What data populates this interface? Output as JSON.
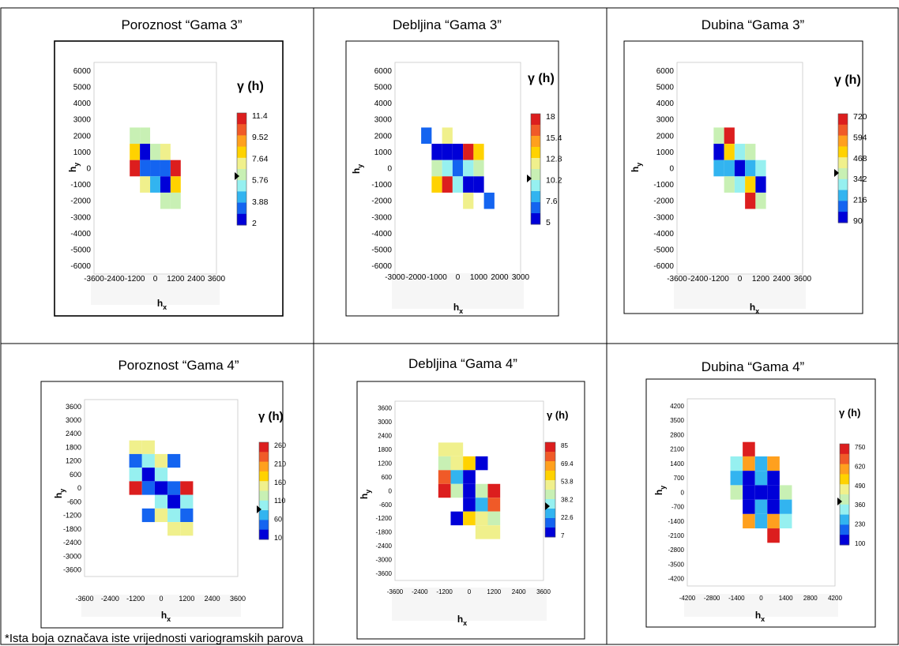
{
  "footnote": "*Ista boja označava iste vrijednosti variogramskih parova",
  "colors": [
    "#0000d8",
    "#1464f0",
    "#32b4f0",
    "#96f0f0",
    "#c8f0b4",
    "#f0f08c",
    "#ffd200",
    "#ffa01e",
    "#f05a28",
    "#dc1e1e"
  ],
  "chart_data": [
    {
      "type": "heatmap",
      "title": "Poroznost “Gama 3”",
      "xlabel": "hx",
      "ylabel": "hy",
      "legend_title": "γ (h)",
      "x_ticks": [
        "-3600",
        "-2400",
        "-1200",
        "0",
        "1200",
        "2400",
        "3600"
      ],
      "y_ticks": [
        "6000",
        "5000",
        "4000",
        "3000",
        "2000",
        "1000",
        "0",
        "-1000",
        "-2000",
        "-3000",
        "-4000",
        "-5000",
        "-6000"
      ],
      "xlim": [
        -3600,
        3600
      ],
      "ylim": [
        -6500,
        6500
      ],
      "cell": [
        600,
        1000
      ],
      "colorbar_labels": [
        "11.4",
        "9.52",
        "7.64",
        "5.76",
        "3.88",
        "2"
      ],
      "colorbar_range": [
        2,
        11.4
      ],
      "cells": [
        {
          "x": -1200,
          "y": 2000,
          "value": 6.5
        },
        {
          "x": -600,
          "y": 2000,
          "value": 5.8
        },
        {
          "x": -1200,
          "y": 1000,
          "value": 8.3
        },
        {
          "x": -600,
          "y": 1000,
          "value": 2.0
        },
        {
          "x": 0,
          "y": 1000,
          "value": 5.8
        },
        {
          "x": 600,
          "y": 1000,
          "value": 7.0
        },
        {
          "x": -1200,
          "y": 0,
          "value": 11.4
        },
        {
          "x": -600,
          "y": 0,
          "value": 3.3
        },
        {
          "x": 0,
          "y": 0,
          "value": 3.3
        },
        {
          "x": 600,
          "y": 0,
          "value": 3.3
        },
        {
          "x": 1200,
          "y": 0,
          "value": 11.4
        },
        {
          "x": -600,
          "y": -1000,
          "value": 7.0
        },
        {
          "x": 0,
          "y": -1000,
          "value": 4.1
        },
        {
          "x": 600,
          "y": -1000,
          "value": 2.0
        },
        {
          "x": 1200,
          "y": -1000,
          "value": 8.3
        },
        {
          "x": 600,
          "y": -2000,
          "value": 5.8
        },
        {
          "x": 1200,
          "y": -2000,
          "value": 6.5
        }
      ]
    },
    {
      "type": "heatmap",
      "title": "Debljina “Gama 3”",
      "xlabel": "hx",
      "ylabel": "hy",
      "legend_title": "γ (h)",
      "x_ticks": [
        "-3000",
        "-2000",
        "-1000",
        "0",
        "1000",
        "2000",
        "3000"
      ],
      "y_ticks": [
        "6000",
        "5000",
        "4000",
        "3000",
        "2000",
        "1000",
        "0",
        "-1000",
        "-2000",
        "-3000",
        "-4000",
        "-5000",
        "-6000"
      ],
      "xlim": [
        -3000,
        3000
      ],
      "ylim": [
        -6500,
        6500
      ],
      "cell": [
        500,
        1000
      ],
      "colorbar_labels": [
        "18",
        "15.4",
        "12.8",
        "10.2",
        "7.6",
        "5"
      ],
      "colorbar_range": [
        5,
        18
      ],
      "cells": [
        {
          "x": -1500,
          "y": 2000,
          "value": 6.0
        },
        {
          "x": -500,
          "y": 2000,
          "value": 12.0
        },
        {
          "x": -1000,
          "y": 1000,
          "value": 5.0
        },
        {
          "x": -500,
          "y": 1000,
          "value": 5.0
        },
        {
          "x": 0,
          "y": 1000,
          "value": 5.0
        },
        {
          "x": 500,
          "y": 1000,
          "value": 18.0
        },
        {
          "x": 1000,
          "y": 1000,
          "value": 14.0
        },
        {
          "x": -1000,
          "y": 0,
          "value": 11.0
        },
        {
          "x": -500,
          "y": 0,
          "value": 9.0
        },
        {
          "x": 0,
          "y": 0,
          "value": 6.0
        },
        {
          "x": 500,
          "y": 0,
          "value": 9.0
        },
        {
          "x": 1000,
          "y": 0,
          "value": 11.0
        },
        {
          "x": -1000,
          "y": -1000,
          "value": 14.0
        },
        {
          "x": -500,
          "y": -1000,
          "value": 18.0
        },
        {
          "x": 0,
          "y": -1000,
          "value": 9.0
        },
        {
          "x": 500,
          "y": -1000,
          "value": 5.0
        },
        {
          "x": 1000,
          "y": -1000,
          "value": 5.0
        },
        {
          "x": 500,
          "y": -2000,
          "value": 12.0
        },
        {
          "x": 1500,
          "y": -2000,
          "value": 6.0
        }
      ]
    },
    {
      "type": "heatmap",
      "title": "Dubina “Gama 3”",
      "xlabel": "hx",
      "ylabel": "hy",
      "legend_title": "γ (h)",
      "x_ticks": [
        "-3600",
        "-2400",
        "-1200",
        "0",
        "1200",
        "2400",
        "3600"
      ],
      "y_ticks": [
        "6000",
        "5000",
        "4000",
        "3000",
        "2000",
        "1000",
        "0",
        "-1000",
        "-2000",
        "-3000",
        "-4000",
        "-5000",
        "-6000"
      ],
      "xlim": [
        -3600,
        3600
      ],
      "ylim": [
        -6500,
        6500
      ],
      "cell": [
        600,
        1000
      ],
      "colorbar_labels": [
        "720",
        "594",
        "468",
        "342",
        "216",
        "90"
      ],
      "colorbar_range": [
        90,
        720
      ],
      "cells": [
        {
          "x": -1200,
          "y": 2000,
          "value": 380
        },
        {
          "x": -600,
          "y": 2000,
          "value": 720
        },
        {
          "x": -1200,
          "y": 1000,
          "value": 90
        },
        {
          "x": -600,
          "y": 1000,
          "value": 520
        },
        {
          "x": 0,
          "y": 1000,
          "value": 300
        },
        {
          "x": 600,
          "y": 1000,
          "value": 380
        },
        {
          "x": -1200,
          "y": 0,
          "value": 250
        },
        {
          "x": -600,
          "y": 0,
          "value": 200
        },
        {
          "x": 0,
          "y": 0,
          "value": 90
        },
        {
          "x": 600,
          "y": 0,
          "value": 200
        },
        {
          "x": 1200,
          "y": 0,
          "value": 300
        },
        {
          "x": -600,
          "y": -1000,
          "value": 380
        },
        {
          "x": 0,
          "y": -1000,
          "value": 300
        },
        {
          "x": 600,
          "y": -1000,
          "value": 520
        },
        {
          "x": 1200,
          "y": -1000,
          "value": 90
        },
        {
          "x": 600,
          "y": -2000,
          "value": 720
        },
        {
          "x": 1200,
          "y": -2000,
          "value": 380
        }
      ]
    },
    {
      "type": "heatmap",
      "title": "Poroznost “Gama 4”",
      "xlabel": "hx",
      "ylabel": "hy",
      "legend_title": "γ (h)",
      "x_ticks": [
        "-3600",
        "-2400",
        "-1200",
        "0",
        "1200",
        "2400",
        "3600"
      ],
      "y_ticks": [
        "3600",
        "3000",
        "2400",
        "1800",
        "1200",
        "600",
        "0",
        "-600",
        "-1200",
        "-1800",
        "-2400",
        "-3000",
        "-3600"
      ],
      "xlim": [
        -3600,
        3600
      ],
      "ylim": [
        -3900,
        3900
      ],
      "cell": [
        600,
        600
      ],
      "colorbar_labels": [
        "260",
        "210",
        "160",
        "110",
        "60",
        "10"
      ],
      "colorbar_range": [
        10,
        260
      ],
      "cells": [
        {
          "x": -1200,
          "y": 1800,
          "value": 140
        },
        {
          "x": -600,
          "y": 1800,
          "value": 140
        },
        {
          "x": -1200,
          "y": 1200,
          "value": 40
        },
        {
          "x": -600,
          "y": 1200,
          "value": 90
        },
        {
          "x": 0,
          "y": 1200,
          "value": 160
        },
        {
          "x": 600,
          "y": 1200,
          "value": 30
        },
        {
          "x": -1200,
          "y": 600,
          "value": 100
        },
        {
          "x": -600,
          "y": 600,
          "value": 10
        },
        {
          "x": 0,
          "y": 600,
          "value": 100
        },
        {
          "x": -1200,
          "y": 0,
          "value": 260
        },
        {
          "x": -600,
          "y": 0,
          "value": 40
        },
        {
          "x": 0,
          "y": 0,
          "value": 10
        },
        {
          "x": 600,
          "y": 0,
          "value": 40
        },
        {
          "x": 1200,
          "y": 0,
          "value": 260
        },
        {
          "x": 0,
          "y": -600,
          "value": 100
        },
        {
          "x": 600,
          "y": -600,
          "value": 10
        },
        {
          "x": 1200,
          "y": -600,
          "value": 100
        },
        {
          "x": -600,
          "y": -1200,
          "value": 30
        },
        {
          "x": 0,
          "y": -1200,
          "value": 160
        },
        {
          "x": 600,
          "y": -1200,
          "value": 90
        },
        {
          "x": 1200,
          "y": -1200,
          "value": 40
        },
        {
          "x": 600,
          "y": -1800,
          "value": 140
        },
        {
          "x": 1200,
          "y": -1800,
          "value": 140
        }
      ]
    },
    {
      "type": "heatmap",
      "title": "Debljina “Gama 4”",
      "xlabel": "hx",
      "ylabel": "hy",
      "legend_title": "γ (h)",
      "x_ticks": [
        "-3600",
        "-2400",
        "-1200",
        "0",
        "1200",
        "2400",
        "3600"
      ],
      "y_ticks": [
        "3600",
        "3000",
        "2400",
        "1800",
        "1200",
        "600",
        "0",
        "-600",
        "-1200",
        "-1800",
        "-2400",
        "-3000",
        "-3600"
      ],
      "xlim": [
        -3600,
        3600
      ],
      "ylim": [
        -3900,
        3900
      ],
      "cell": [
        600,
        600
      ],
      "colorbar_labels": [
        "85",
        "69.4",
        "53.8",
        "38.2",
        "22.6",
        "7"
      ],
      "colorbar_range": [
        7,
        85
      ],
      "cells": [
        {
          "x": -1200,
          "y": 1800,
          "value": 47
        },
        {
          "x": -600,
          "y": 1800,
          "value": 47
        },
        {
          "x": -1200,
          "y": 1200,
          "value": 40
        },
        {
          "x": -600,
          "y": 1200,
          "value": 47
        },
        {
          "x": 0,
          "y": 1200,
          "value": 55
        },
        {
          "x": 600,
          "y": 1200,
          "value": 7
        },
        {
          "x": -1200,
          "y": 600,
          "value": 75
        },
        {
          "x": -600,
          "y": 600,
          "value": 22
        },
        {
          "x": 0,
          "y": 600,
          "value": 7
        },
        {
          "x": -1200,
          "y": 0,
          "value": 85
        },
        {
          "x": -600,
          "y": 0,
          "value": 38
        },
        {
          "x": 0,
          "y": 0,
          "value": 7
        },
        {
          "x": 600,
          "y": 0,
          "value": 38
        },
        {
          "x": 1200,
          "y": 0,
          "value": 85
        },
        {
          "x": 0,
          "y": -600,
          "value": 7
        },
        {
          "x": 600,
          "y": -600,
          "value": 22
        },
        {
          "x": 1200,
          "y": -600,
          "value": 75
        },
        {
          "x": -600,
          "y": -1200,
          "value": 7
        },
        {
          "x": 0,
          "y": -1200,
          "value": 55
        },
        {
          "x": 600,
          "y": -1200,
          "value": 47
        },
        {
          "x": 1200,
          "y": -1200,
          "value": 40
        },
        {
          "x": 600,
          "y": -1800,
          "value": 47
        },
        {
          "x": 1200,
          "y": -1800,
          "value": 47
        }
      ]
    },
    {
      "type": "heatmap",
      "title": "Dubina “Gama 4”",
      "xlabel": "hx",
      "ylabel": "hy",
      "legend_title": "γ (h)",
      "x_ticks": [
        "-4200",
        "-2800",
        "-1400",
        "0",
        "1400",
        "2800",
        "4200"
      ],
      "y_ticks": [
        "4200",
        "3500",
        "2800",
        "2100",
        "1400",
        "700",
        "0",
        "-700",
        "-1400",
        "-2100",
        "-2800",
        "-3500",
        "-4200"
      ],
      "xlim": [
        -4200,
        4200
      ],
      "ylim": [
        -4550,
        4550
      ],
      "cell": [
        700,
        700
      ],
      "colorbar_labels": [
        "750",
        "620",
        "490",
        "360",
        "230",
        "100"
      ],
      "colorbar_range": [
        100,
        750
      ],
      "cells": [
        {
          "x": -700,
          "y": 2100,
          "value": 750
        },
        {
          "x": -1400,
          "y": 1400,
          "value": 300
        },
        {
          "x": -700,
          "y": 1400,
          "value": 600
        },
        {
          "x": 0,
          "y": 1400,
          "value": 230
        },
        {
          "x": 700,
          "y": 1400,
          "value": 600
        },
        {
          "x": -1400,
          "y": 700,
          "value": 230
        },
        {
          "x": -700,
          "y": 700,
          "value": 100
        },
        {
          "x": 0,
          "y": 700,
          "value": 230
        },
        {
          "x": 700,
          "y": 700,
          "value": 100
        },
        {
          "x": -1400,
          "y": 0,
          "value": 360
        },
        {
          "x": -700,
          "y": 0,
          "value": 100
        },
        {
          "x": 0,
          "y": 0,
          "value": 100
        },
        {
          "x": 700,
          "y": 0,
          "value": 100
        },
        {
          "x": 1400,
          "y": 0,
          "value": 360
        },
        {
          "x": -700,
          "y": -700,
          "value": 100
        },
        {
          "x": 0,
          "y": -700,
          "value": 230
        },
        {
          "x": 700,
          "y": -700,
          "value": 100
        },
        {
          "x": 1400,
          "y": -700,
          "value": 230
        },
        {
          "x": -700,
          "y": -1400,
          "value": 600
        },
        {
          "x": 0,
          "y": -1400,
          "value": 230
        },
        {
          "x": 700,
          "y": -1400,
          "value": 600
        },
        {
          "x": 1400,
          "y": -1400,
          "value": 300
        },
        {
          "x": 700,
          "y": -2100,
          "value": 750
        }
      ]
    }
  ]
}
